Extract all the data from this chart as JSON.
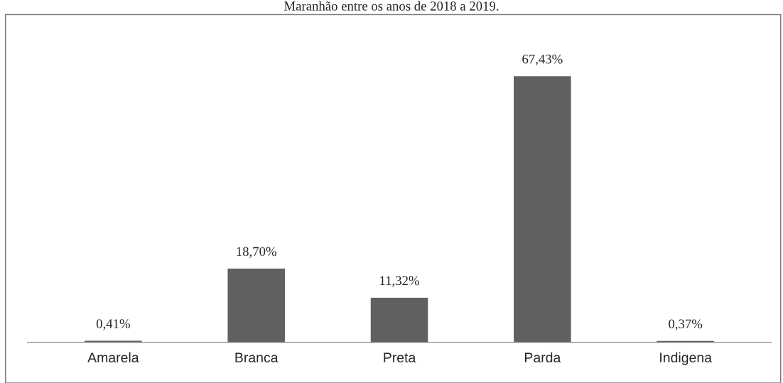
{
  "chart_data": {
    "type": "bar",
    "title": "Maranhão entre os anos de 2018 a 2019.",
    "categories": [
      "Amarela",
      "Branca",
      "Preta",
      "Parda",
      "Indigena"
    ],
    "values": [
      0.41,
      18.7,
      11.32,
      67.43,
      0.37
    ],
    "value_labels": [
      "0,41%",
      "18,70%",
      "11,32%",
      "67,43%",
      "0,37%"
    ],
    "color": "#606060",
    "grid": false,
    "legend": false,
    "tick_labels": "x"
  }
}
